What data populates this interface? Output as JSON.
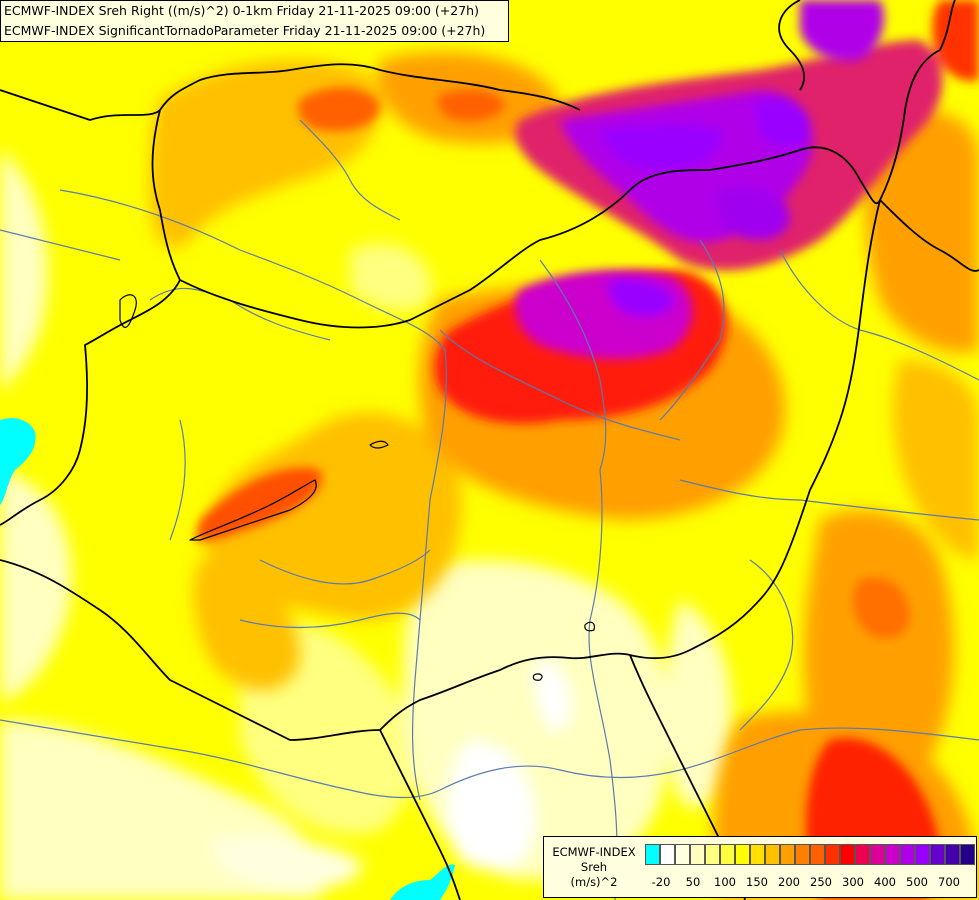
{
  "header": {
    "line1": "ECMWF-INDEX Sreh Right ((m/s)^2) 0-1km Friday 21-11-2025 09:00 (+27h)",
    "line2": "ECMWF-INDEX SignificantTornadoParameter Friday 21-11-2025 09:00 (+27h)"
  },
  "legend": {
    "title": "ECMWF-INDEX",
    "variable": "Sreh",
    "unit": "(m/s)^2",
    "colors": [
      "#00ffff",
      "#ffffff",
      "#ffffe0",
      "#ffffc0",
      "#ffff80",
      "#ffff40",
      "#ffff00",
      "#ffe000",
      "#ffc000",
      "#ff9f00",
      "#ff8000",
      "#ff6000",
      "#ff3000",
      "#ff0000",
      "#ee0050",
      "#dd0099",
      "#cc00cc",
      "#b000e8",
      "#9900ff",
      "#6600cc",
      "#4400aa",
      "#220088"
    ],
    "ticks": [
      "-20",
      "50",
      "100",
      "150",
      "200",
      "250",
      "300",
      "400",
      "500",
      "700"
    ]
  },
  "map_colors": {
    "background": "#ffff00",
    "country_border": "#000000",
    "river": "#5a7ab0"
  }
}
